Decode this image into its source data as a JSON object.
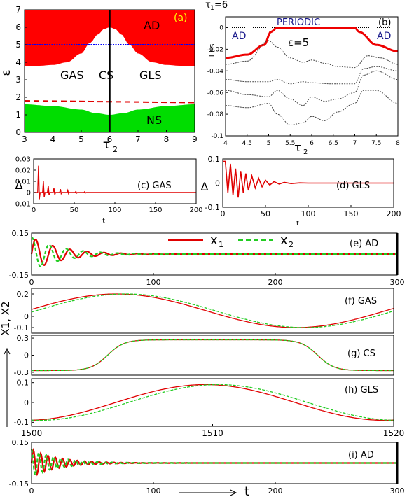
{
  "figure": {
    "panel_a": {
      "tag": "(a)",
      "xlabel": "τ",
      "xlabel_sub": "2",
      "ylabel": "ε",
      "xticks": [
        "3",
        "4",
        "5",
        "6",
        "7",
        "8",
        "9"
      ],
      "yticks": [
        "0",
        "1",
        "2",
        "3",
        "4",
        "5",
        "6",
        "7"
      ],
      "regions": [
        "AD",
        "GAS",
        "CS",
        "GLS",
        "NS"
      ]
    },
    "panel_b": {
      "tag": "(b)",
      "ylabel": "LEs",
      "xlabel": "τ",
      "xlabel_sub": "2",
      "top_label": "τ",
      "top_label_sub": "1",
      "top_label_value": "=6",
      "eps_label": "ε=5",
      "xticks": [
        "4",
        "4.5",
        "5",
        "5.5",
        "6",
        "6.5",
        "7",
        "7.5",
        "8"
      ],
      "yticks": [
        "0",
        "-0.02",
        "-0.04",
        "-0.06",
        "-0.08",
        "-0.1"
      ],
      "regions": [
        "AD",
        "PERIODIC",
        "AD"
      ]
    },
    "panel_c": {
      "tag": "(c) GAS",
      "ylabel": "Δ",
      "xlabel": "t",
      "xticks": [
        "0",
        "50",
        "100",
        "150",
        "200"
      ],
      "yticks": [
        "0.03",
        "0.02",
        "0.01",
        "0",
        "-0.01"
      ]
    },
    "panel_d": {
      "tag": "(d) GLS",
      "ylabel": "Δ",
      "xlabel": "t",
      "xticks": [
        "0",
        "50",
        "100",
        "150",
        "200"
      ],
      "yticks": [
        "0.1",
        "0",
        "-0.1"
      ]
    },
    "panel_e": {
      "tag": "(e) AD",
      "xticks": [
        "0",
        "100",
        "200",
        "300"
      ],
      "yticks": [
        "0.15",
        "-0.15"
      ],
      "legend": [
        {
          "name": "x",
          "sub": "1"
        },
        {
          "name": "x",
          "sub": "2"
        }
      ]
    },
    "panel_f": {
      "tag": "(f) GAS",
      "yticks": [
        "0.2",
        "0",
        "-0.1"
      ]
    },
    "panel_g": {
      "tag": "(g) CS",
      "yticks": [
        "0.3",
        "0",
        "-0.3"
      ]
    },
    "panel_h": {
      "tag": "(h) GLS",
      "yticks": [
        "0.1",
        "0",
        "-0.1"
      ],
      "xticks": [
        "1500",
        "1510",
        "1520"
      ]
    },
    "panel_i": {
      "tag": "(i) AD",
      "yticks": [
        "0.15",
        "-0.15"
      ],
      "xticks": [
        "0",
        "100",
        "200",
        "300"
      ],
      "xlabel": "t"
    },
    "stack_ylabel": "X1, X2",
    "colors": {
      "ad_region": "#ff0000",
      "ns_region": "#00dd00",
      "x1": "#e00000",
      "x2": "#22cc22",
      "blue_line": "#0000ff",
      "tag_yellow": "#ffff00",
      "label_blue": "#1a1a8c"
    }
  },
  "chart_data": [
    {
      "type": "area",
      "panel": "a",
      "xlim": [
        3,
        9
      ],
      "ylim": [
        0,
        7
      ],
      "ad_boundary": {
        "x": [
          3,
          3.5,
          4,
          4.5,
          5,
          5.3,
          5.6,
          5.8,
          6,
          6.2,
          6.4,
          6.7,
          7,
          7.5,
          8,
          8.5,
          9
        ],
        "y": [
          3.8,
          3.8,
          3.85,
          4.0,
          4.5,
          5.1,
          5.6,
          5.9,
          6.0,
          5.9,
          5.6,
          5.0,
          4.5,
          4.0,
          3.85,
          3.8,
          3.8
        ]
      },
      "ns_boundary": {
        "x": [
          3,
          4,
          5,
          5.5,
          6,
          6.5,
          7,
          8,
          9
        ],
        "y": [
          1.6,
          1.5,
          1.3,
          1.1,
          1.0,
          1.1,
          1.3,
          1.5,
          1.6
        ]
      },
      "blue_line_y": 5.0,
      "dashed_line": {
        "x": [
          3,
          9
        ],
        "y": [
          1.8,
          1.7
        ]
      },
      "vertical_line_x": 6
    },
    {
      "type": "line",
      "panel": "b",
      "xlim": [
        4,
        8
      ],
      "ylim": [
        -0.1,
        0.01
      ],
      "series": [
        {
          "role": "largest",
          "x": [
            4,
            4.5,
            4.9,
            5.05,
            5.2,
            6.8,
            7.0,
            7.1,
            7.5,
            8
          ],
          "y": [
            -0.028,
            -0.025,
            -0.016,
            -0.004,
            0,
            0,
            0,
            -0.004,
            -0.016,
            -0.022
          ]
        },
        {
          "role": "second",
          "x": [
            4,
            4.5,
            5,
            5.2,
            5.5,
            5.8,
            6,
            6.3,
            6.6,
            7,
            7.3,
            7.6,
            8
          ],
          "y": [
            -0.034,
            -0.031,
            -0.012,
            -0.018,
            -0.028,
            -0.032,
            -0.03,
            -0.033,
            -0.036,
            -0.037,
            -0.026,
            -0.028,
            -0.034
          ]
        },
        {
          "role": "third",
          "x": [
            4,
            4.5,
            5,
            5.2,
            5.5,
            5.8,
            6,
            6.5,
            7,
            7.2,
            7.5,
            8
          ],
          "y": [
            -0.048,
            -0.05,
            -0.05,
            -0.048,
            -0.052,
            -0.05,
            -0.051,
            -0.052,
            -0.052,
            -0.038,
            -0.036,
            -0.04
          ]
        },
        {
          "role": "fourth",
          "x": [
            4,
            4.5,
            5,
            5.2,
            5.5,
            5.8,
            6,
            6.3,
            6.6,
            7,
            7.2,
            7.5,
            8
          ],
          "y": [
            -0.058,
            -0.062,
            -0.064,
            -0.058,
            -0.066,
            -0.072,
            -0.064,
            -0.068,
            -0.066,
            -0.06,
            -0.044,
            -0.04,
            -0.048
          ]
        },
        {
          "role": "fifth",
          "x": [
            4,
            4.5,
            5,
            5.2,
            5.5,
            5.8,
            6,
            6.3,
            6.6,
            7,
            7.2,
            7.5,
            8
          ],
          "y": [
            -0.072,
            -0.074,
            -0.07,
            -0.08,
            -0.09,
            -0.088,
            -0.082,
            -0.086,
            -0.078,
            -0.07,
            -0.058,
            -0.058,
            -0.07
          ]
        }
      ]
    },
    {
      "type": "line",
      "panel": "c",
      "xlim": [
        0,
        200
      ],
      "ylim": [
        -0.01,
        0.03
      ],
      "spikes": [
        {
          "t": 6,
          "peak": 0.024,
          "trough": -0.006
        },
        {
          "t": 12,
          "peak": 0.01,
          "trough": -0.004
        },
        {
          "t": 18,
          "peak": 0.006,
          "trough": -0.002
        },
        {
          "t": 25,
          "peak": 0.004,
          "trough": -0.002
        },
        {
          "t": 33,
          "peak": 0.003,
          "trough": -0.001
        },
        {
          "t": 42,
          "peak": 0.002,
          "trough": -0.001
        },
        {
          "t": 52,
          "peak": 0.001,
          "trough": -0.0005
        },
        {
          "t": 63,
          "peak": 0.0008,
          "trough": -0.0004
        }
      ]
    },
    {
      "type": "line",
      "panel": "d",
      "xlim": [
        0,
        200
      ],
      "ylim": [
        -0.1,
        0.1
      ],
      "series": [
        {
          "role": "delta",
          "x": [
            0,
            3,
            6,
            9,
            12,
            15,
            18,
            21,
            24,
            27,
            30,
            34,
            38,
            42,
            46,
            50,
            55,
            60,
            66,
            72,
            80,
            90,
            100,
            200
          ],
          "y": [
            0.09,
            0.09,
            -0.04,
            0.08,
            -0.05,
            0.06,
            -0.06,
            0.05,
            -0.04,
            0.04,
            -0.03,
            0.03,
            -0.02,
            0.02,
            -0.015,
            0.012,
            -0.008,
            0.006,
            -0.004,
            0.003,
            -0.002,
            0.001,
            0,
            0
          ]
        }
      ]
    },
    {
      "type": "line",
      "panel": "e",
      "xlim": [
        0,
        300
      ],
      "ylim": [
        -0.15,
        0.15
      ],
      "series": [
        {
          "name": "x1",
          "amplitude": 0.12,
          "decay_time": 25,
          "period": 14
        },
        {
          "name": "x2",
          "amplitude": 0.12,
          "decay_time": 25,
          "period": 14,
          "phase_shift": 3
        }
      ]
    },
    {
      "type": "line",
      "panel": "f",
      "xlim": [
        1500,
        1520
      ],
      "ylim": [
        -0.15,
        0.25
      ],
      "series": [
        {
          "name": "x1",
          "center": 0.05,
          "amplitude": 0.15,
          "period": 19.8,
          "peak_t": 1504.7
        },
        {
          "name": "x2",
          "center": 0.05,
          "amplitude": 0.15,
          "period": 19.8,
          "peak_t": 1505.2
        }
      ]
    },
    {
      "type": "line",
      "panel": "g",
      "xlim": [
        1500,
        1520
      ],
      "ylim": [
        -0.35,
        0.35
      ],
      "series": [
        {
          "name": "x1",
          "low": -0.27,
          "high": 0.27,
          "rise_t": 1504.2,
          "fall_t": 1515.8
        },
        {
          "name": "x2",
          "low": -0.27,
          "high": 0.27,
          "rise_t": 1504.2,
          "fall_t": 1515.8
        }
      ]
    },
    {
      "type": "line",
      "panel": "h",
      "xlim": [
        1500,
        1520
      ],
      "ylim": [
        -0.12,
        0.12
      ],
      "series": [
        {
          "name": "x1",
          "amplitude": 0.09,
          "period": 19.8,
          "peak_t": 1509.6
        },
        {
          "name": "x2",
          "amplitude": 0.09,
          "period": 19.8,
          "peak_t": 1510.3
        }
      ]
    },
    {
      "type": "line",
      "panel": "i",
      "xlim": [
        0,
        300
      ],
      "ylim": [
        -0.15,
        0.15
      ],
      "series": [
        {
          "name": "x1",
          "amplitude": 0.1,
          "decay_time": 22,
          "period": 6
        },
        {
          "name": "x2",
          "amplitude": 0.1,
          "decay_time": 22,
          "period": 6,
          "phase_shift": 1.5
        }
      ]
    }
  ]
}
